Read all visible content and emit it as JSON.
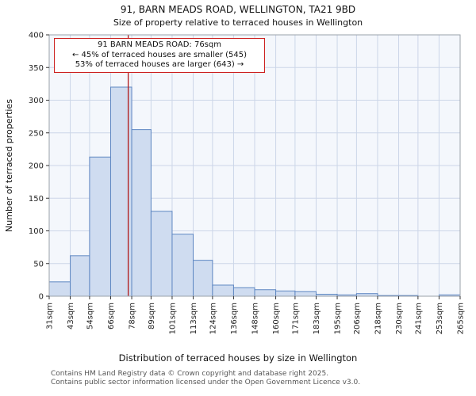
{
  "chart_data": {
    "type": "bar",
    "title": "91, BARN MEADS ROAD, WELLINGTON, TA21 9BD",
    "subtitle": "Size of property relative to terraced houses in Wellington",
    "xlabel": "Distribution of terraced houses by size in Wellington",
    "ylabel": "Number of terraced properties",
    "categories": [
      "31sqm",
      "43sqm",
      "54sqm",
      "66sqm",
      "78sqm",
      "89sqm",
      "101sqm",
      "113sqm",
      "124sqm",
      "136sqm",
      "148sqm",
      "160sqm",
      "171sqm",
      "183sqm",
      "195sqm",
      "206sqm",
      "218sqm",
      "230sqm",
      "241sqm",
      "253sqm",
      "265sqm"
    ],
    "bin_edges_sqm": [
      31,
      43,
      54,
      66,
      78,
      89,
      101,
      113,
      124,
      136,
      148,
      160,
      171,
      183,
      195,
      206,
      218,
      230,
      241,
      253,
      265
    ],
    "values": [
      22,
      62,
      213,
      320,
      255,
      130,
      95,
      55,
      17,
      13,
      10,
      8,
      7,
      3,
      2,
      4,
      1,
      1,
      0,
      2
    ],
    "ylim": [
      0,
      400
    ],
    "ytick_step": 50,
    "grid": true,
    "marker": {
      "value_sqm": 76,
      "label": "91 BARN MEADS ROAD: 76sqm"
    },
    "annotation": {
      "line1": "91 BARN MEADS ROAD: 76sqm",
      "line2": "← 45% of terraced houses are smaller (545)",
      "line3": "53% of terraced houses are larger (643) →"
    },
    "colors": {
      "bar_fill": "#cfdcf0",
      "bar_edge": "#5e87c2",
      "grid": "#ccd6e8",
      "plot_bg": "#f4f7fc",
      "marker_line": "#b01818",
      "annotation_border": "#cc2020"
    }
  },
  "footer": {
    "line1": "Contains HM Land Registry data © Crown copyright and database right 2025.",
    "line2": "Contains public sector information licensed under the Open Government Licence v3.0."
  }
}
